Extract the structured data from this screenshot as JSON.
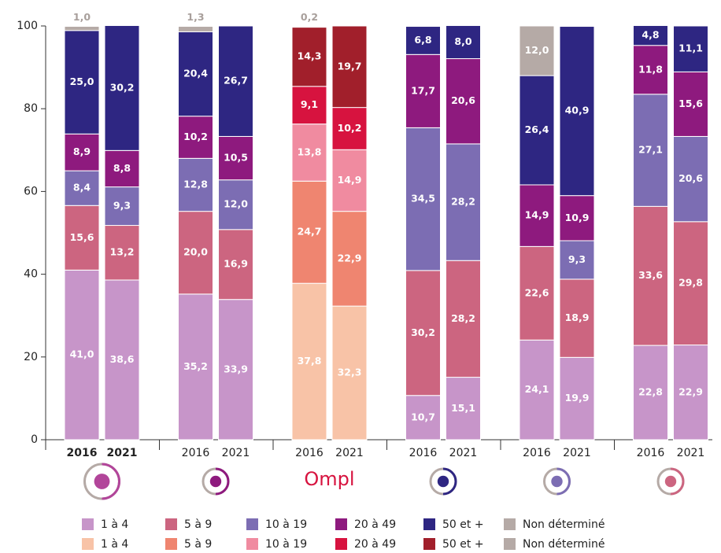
{
  "chart_data": {
    "type": "bar",
    "stacked": true,
    "categories": [
      "2016",
      "2021",
      "2016",
      "2021",
      "2016",
      "2021",
      "2016",
      "2021",
      "2016",
      "2021",
      "2016",
      "2021"
    ],
    "group_labels": [
      null,
      null,
      "Ompl",
      null,
      null,
      null
    ],
    "ylim": [
      0,
      100
    ],
    "yticks": [
      0,
      20,
      40,
      60,
      80,
      100
    ],
    "series": [
      {
        "name": "1 à 4",
        "color": "#c795c9",
        "values": [
          41.0,
          38.6,
          35.2,
          33.9,
          null,
          null,
          10.7,
          15.1,
          24.1,
          19.9,
          22.8,
          22.9
        ],
        "value_labels": [
          "41,0",
          "38,6",
          "35,2",
          "33,9",
          null,
          null,
          "10,7",
          "15,1",
          "24,1",
          "19,9",
          "22,8",
          "22,9"
        ]
      },
      {
        "name": "5 à 9",
        "color": "#cc6580",
        "values": [
          15.6,
          13.2,
          20.0,
          16.9,
          null,
          null,
          30.2,
          28.2,
          22.6,
          18.9,
          33.6,
          29.8
        ],
        "value_labels": [
          "15,6",
          "13,2",
          "20,0",
          "16,9",
          null,
          null,
          "30,2",
          "28,2",
          "22,6",
          "18,9",
          "33,6",
          "29,8"
        ]
      },
      {
        "name": "10 à 19",
        "color": "#7c6db3",
        "values": [
          8.4,
          9.3,
          12.8,
          12.0,
          null,
          null,
          34.5,
          28.2,
          null,
          9.3,
          27.1,
          20.6
        ],
        "value_labels": [
          "8,4",
          "9,3",
          "12,8",
          "12,0",
          null,
          null,
          "34,5",
          "28,2",
          null,
          "9,3",
          "27,1",
          "20,6"
        ]
      },
      {
        "name": "20 à 49",
        "color": "#8e1a7e",
        "values": [
          8.9,
          8.8,
          10.2,
          10.5,
          null,
          null,
          17.7,
          20.6,
          14.9,
          10.9,
          11.8,
          15.6
        ],
        "value_labels": [
          "8,9",
          "8,8",
          "10,2",
          "10,5",
          null,
          null,
          "17,7",
          "20,6",
          "14,9",
          "10,9",
          "11,8",
          "15,6"
        ]
      },
      {
        "name": "50 et +",
        "color": "#2e2682",
        "values": [
          25.0,
          30.2,
          20.4,
          26.7,
          null,
          null,
          6.8,
          8.0,
          26.4,
          40.9,
          4.8,
          11.1
        ],
        "value_labels": [
          "25,0",
          "30,2",
          "20,4",
          "26,7",
          null,
          null,
          "6,8",
          "8,0",
          "26,4",
          "40,9",
          "4,8",
          "11,1"
        ]
      },
      {
        "name": "Non déterminé",
        "color": "#b5aaa6",
        "values": [
          1.0,
          null,
          1.3,
          null,
          null,
          null,
          null,
          null,
          12.0,
          null,
          null,
          null
        ],
        "value_labels": [
          "1,0",
          null,
          "1,3",
          null,
          null,
          null,
          null,
          null,
          "12,0",
          null,
          null,
          null
        ]
      },
      {
        "name": "1 à 4",
        "color": "#f8c3a7",
        "values": [
          null,
          null,
          null,
          null,
          37.8,
          32.3,
          null,
          null,
          null,
          null,
          null,
          null
        ],
        "value_labels": [
          null,
          null,
          null,
          null,
          "37,8",
          "32,3",
          null,
          null,
          null,
          null,
          null,
          null
        ]
      },
      {
        "name": "5 à 9",
        "color": "#ef8570",
        "values": [
          null,
          null,
          null,
          null,
          24.7,
          22.9,
          null,
          null,
          null,
          null,
          null,
          null
        ],
        "value_labels": [
          null,
          null,
          null,
          null,
          "24,7",
          "22,9",
          null,
          null,
          null,
          null,
          null,
          null
        ]
      },
      {
        "name": "10 à 19",
        "color": "#f08ba0",
        "values": [
          null,
          null,
          null,
          null,
          13.8,
          14.9,
          null,
          null,
          null,
          null,
          null,
          null
        ],
        "value_labels": [
          null,
          null,
          null,
          null,
          "13,8",
          "14,9",
          null,
          null,
          null,
          null,
          null,
          null
        ]
      },
      {
        "name": "20 à 49",
        "color": "#d7133f",
        "values": [
          null,
          null,
          null,
          null,
          9.1,
          10.2,
          null,
          null,
          null,
          null,
          null,
          null
        ],
        "value_labels": [
          null,
          null,
          null,
          null,
          "9,1",
          "10,2",
          null,
          null,
          null,
          null,
          null,
          null
        ]
      },
      {
        "name": "50 et +",
        "color": "#a11f2b",
        "values": [
          null,
          null,
          null,
          null,
          14.3,
          19.7,
          null,
          null,
          null,
          null,
          null,
          null
        ],
        "value_labels": [
          null,
          null,
          null,
          null,
          "14,3",
          "19,7",
          null,
          null,
          null,
          null,
          null,
          null
        ]
      },
      {
        "name": "Non déterminé",
        "color": "#b5aaa6",
        "values": [
          null,
          null,
          null,
          null,
          0.2,
          null,
          null,
          null,
          null,
          null,
          null,
          null
        ],
        "value_labels": [
          null,
          null,
          null,
          null,
          "0,2",
          null,
          null,
          null,
          null,
          null,
          null,
          null
        ]
      }
    ]
  }
}
